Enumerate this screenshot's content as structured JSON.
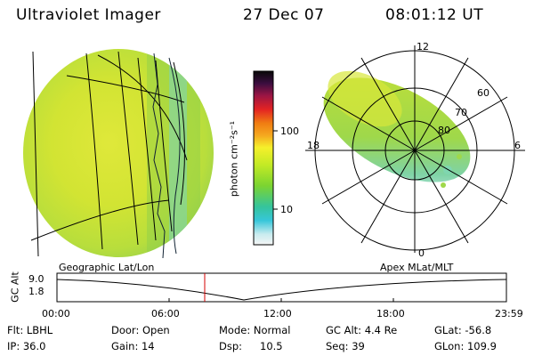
{
  "header": {
    "instrument": "Ultraviolet Imager",
    "date": "27 Dec 07",
    "time": "08:01:12 UT"
  },
  "colorbar": {
    "label": "photon cm⁻²s⁻¹",
    "ticks": [
      "100",
      "10"
    ],
    "scale": "log",
    "colors": [
      "#f5f5f5",
      "#c9ecef",
      "#36c6d9",
      "#35c49b",
      "#7bd431",
      "#c3ea25",
      "#f5f02b",
      "#f5a81f",
      "#f07d12",
      "#e32323",
      "#9a1544",
      "#3a0d3f",
      "#080808"
    ]
  },
  "left_panel": {
    "label": "Geographic Lat/Lon"
  },
  "right_panel": {
    "label": "Apex MLat/MLT",
    "mlt_labels": [
      "12",
      "18",
      "6",
      "0"
    ],
    "mlat_labels": [
      "60",
      "70",
      "80"
    ]
  },
  "altitude_plot": {
    "ylabel": "GC Alt",
    "yticks": [
      "9.0",
      "1.8"
    ],
    "xticks": [
      "00:00",
      "06:00",
      "12:00",
      "18:00",
      "23:59"
    ],
    "current_marker_color": "#d40000"
  },
  "info": {
    "flt": "Flt: LBHL",
    "ip": "IP: 36.0",
    "door": "Door: Open",
    "gain": "Gain: 14",
    "mode": "Mode: Normal",
    "dsp": "Dsp:",
    "dsp_value": "10.5",
    "gc_alt": "GC Alt: 4.4 Re",
    "seq": "Seq: 39",
    "glat": "GLat: -56.8",
    "glon": "GLon: 109.9"
  }
}
